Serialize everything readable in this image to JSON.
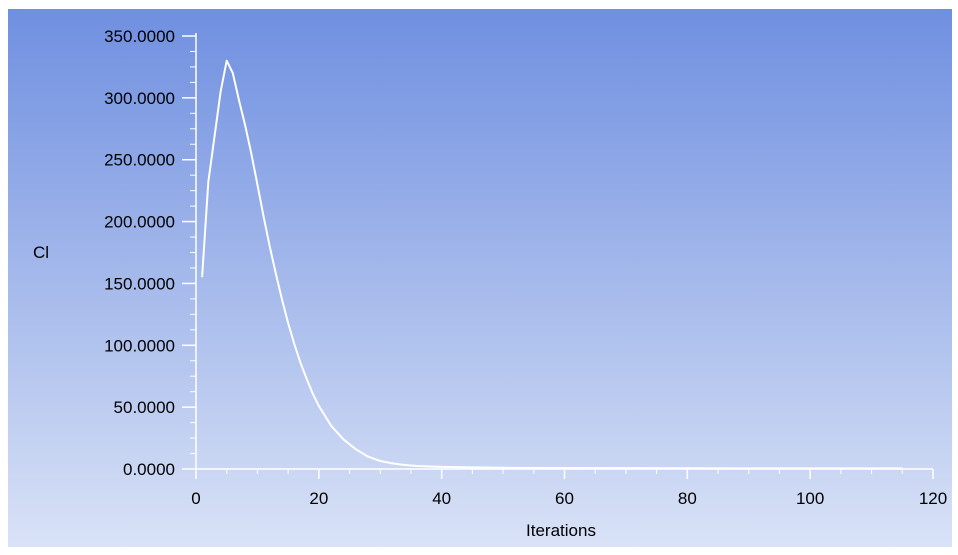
{
  "colors": {
    "background_top": "#6f8fe0",
    "background_bottom": "#d9e2f6",
    "line": "#ffffff",
    "axis": "#ffffff",
    "text": "#000000"
  },
  "chart_data": {
    "type": "line",
    "title": "",
    "xlabel": "Iterations",
    "ylabel": "Cl",
    "xlim": [
      0,
      120
    ],
    "ylim": [
      0,
      350
    ],
    "x_ticks": [
      0,
      20,
      40,
      60,
      80,
      100,
      120
    ],
    "x_tick_labels": [
      "0",
      "20",
      "40",
      "60",
      "80",
      "100",
      "120"
    ],
    "y_ticks": [
      0,
      50,
      100,
      150,
      200,
      250,
      300,
      350
    ],
    "y_tick_labels": [
      "0.0000",
      "50.0000",
      "100.0000",
      "150.0000",
      "200.0000",
      "250.0000",
      "300.0000",
      "350.0000"
    ],
    "grid": false,
    "legend": "none",
    "series": [
      {
        "x": [
          1,
          2,
          3,
          4,
          5,
          6,
          7,
          8,
          9,
          10,
          11,
          12,
          13,
          14,
          15,
          16,
          17,
          18,
          19,
          20,
          22,
          24,
          26,
          28,
          30,
          32,
          34,
          36,
          38,
          40,
          45,
          50,
          60,
          70,
          80,
          90,
          100,
          110,
          115
        ],
        "y": [
          155,
          232,
          268,
          305,
          330,
          320,
          298,
          278,
          255,
          230,
          204,
          180,
          158,
          137,
          118,
          101,
          86,
          73,
          61,
          51,
          35,
          24,
          16,
          10,
          6.5,
          4.5,
          3.2,
          2.4,
          2.0,
          1.7,
          1.3,
          1.0,
          0.8,
          0.7,
          0.6,
          0.5,
          0.5,
          0.5,
          0.5
        ]
      }
    ]
  }
}
